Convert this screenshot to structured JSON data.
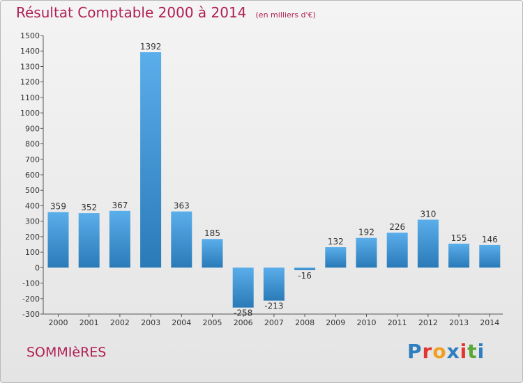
{
  "header": {
    "title": "Résultat Comptable 2000 à 2014",
    "subtitle": "(en milliers d'€)"
  },
  "footer": {
    "town": "SOMMIèRES",
    "logo_text": "Proxiti",
    "logo_colors": [
      "#2f7ec0",
      "#e2352c",
      "#f0a020",
      "#2f7ec0",
      "#e2352c",
      "#58a838",
      "#2f7ec0"
    ]
  },
  "colors": {
    "bar_light": "#5aaeea",
    "bar_dark": "#2a7ab8",
    "title": "#b01e54"
  },
  "chart_data": {
    "type": "bar",
    "title": "Résultat Comptable 2000 à 2014",
    "subtitle": "(en milliers d'€)",
    "categories": [
      "2000",
      "2001",
      "2002",
      "2003",
      "2004",
      "2005",
      "2006",
      "2007",
      "2008",
      "2009",
      "2010",
      "2011",
      "2012",
      "2013",
      "2014"
    ],
    "values": [
      359,
      352,
      367,
      1392,
      363,
      185,
      -258,
      -213,
      -16,
      132,
      192,
      226,
      310,
      155,
      146
    ],
    "value_labels": [
      "359",
      "352",
      "367",
      "1392",
      "363",
      "185",
      "-258",
      "-213",
      "-16",
      "132",
      "192",
      "226",
      "310",
      "155",
      "146"
    ],
    "ylim": [
      -300,
      1500
    ],
    "yticks": [
      -300,
      -200,
      -100,
      0,
      100,
      200,
      300,
      400,
      500,
      600,
      700,
      800,
      900,
      1000,
      1100,
      1200,
      1300,
      1400,
      1500
    ],
    "grid": false
  }
}
